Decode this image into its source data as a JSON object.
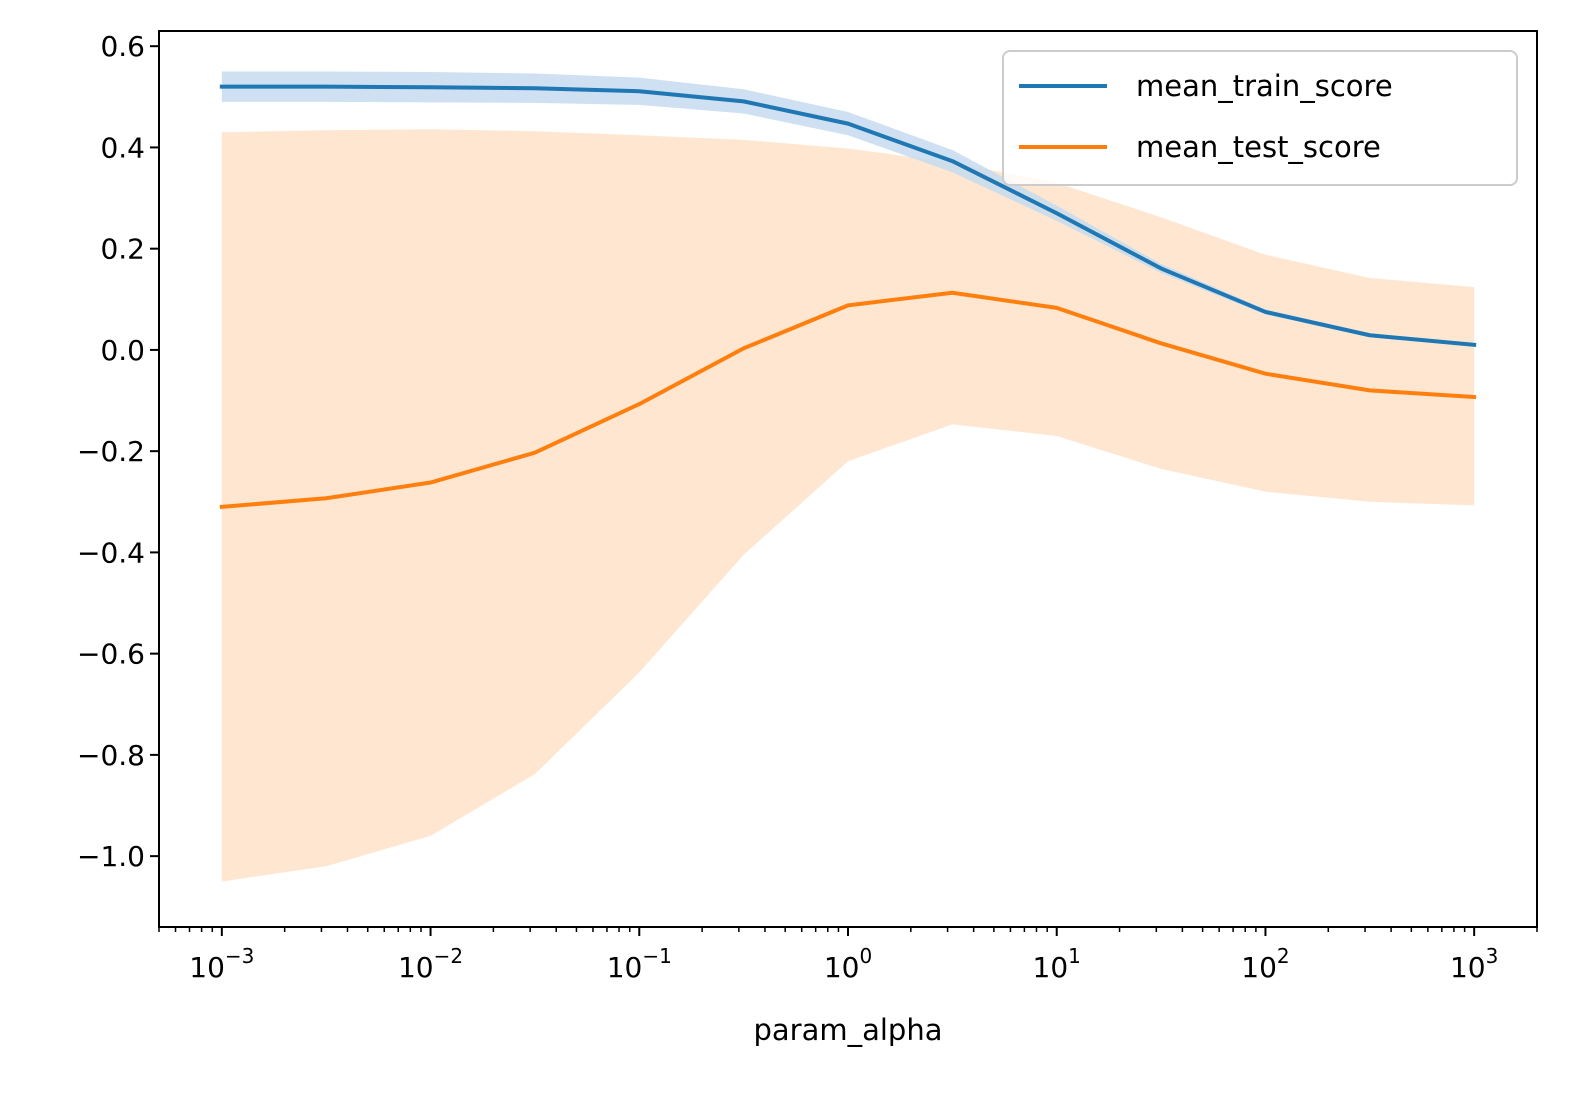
{
  "chart_data": {
    "type": "line",
    "title": "",
    "xlabel": "param_alpha",
    "ylabel": "",
    "xscale": "log",
    "xlim": [
      0.0005,
      2000
    ],
    "ylim": [
      -1.14,
      0.63
    ],
    "x": [
      0.001,
      0.00316,
      0.01,
      0.0316,
      0.1,
      0.316,
      1,
      3.16,
      10,
      31.6,
      100,
      316,
      1000
    ],
    "series": [
      {
        "name": "mean_train_score",
        "color": "#1f77b4",
        "band_color": "#c6dbef",
        "values": [
          0.52,
          0.52,
          0.519,
          0.517,
          0.511,
          0.491,
          0.447,
          0.373,
          0.27,
          0.161,
          0.075,
          0.029,
          0.01
        ],
        "upper": [
          0.55,
          0.55,
          0.549,
          0.546,
          0.538,
          0.515,
          0.47,
          0.395,
          0.285,
          0.17,
          0.08,
          0.033,
          0.013
        ],
        "lower": [
          0.49,
          0.49,
          0.489,
          0.488,
          0.484,
          0.467,
          0.424,
          0.351,
          0.255,
          0.152,
          0.07,
          0.025,
          0.007
        ]
      },
      {
        "name": "mean_test_score",
        "color": "#ff7f0e",
        "band_color": "#ffe2c9",
        "values": [
          -0.31,
          -0.293,
          -0.262,
          -0.203,
          -0.107,
          0.003,
          0.088,
          0.113,
          0.083,
          0.013,
          -0.047,
          -0.08,
          -0.093
        ],
        "upper": [
          0.43,
          0.434,
          0.436,
          0.432,
          0.424,
          0.415,
          0.398,
          0.37,
          0.33,
          0.262,
          0.188,
          0.142,
          0.124
        ],
        "lower": [
          -1.05,
          -1.02,
          -0.96,
          -0.838,
          -0.637,
          -0.405,
          -0.22,
          -0.147,
          -0.17,
          -0.235,
          -0.28,
          -0.3,
          -0.307
        ]
      }
    ],
    "yticks": [
      0.6,
      0.4,
      0.2,
      0.0,
      -0.2,
      -0.4,
      -0.6,
      -0.8,
      -1.0
    ],
    "ytick_labels": [
      "0.6",
      "0.4",
      "0.2",
      "0.0",
      "−0.2",
      "−0.4",
      "−0.6",
      "−0.8",
      "−1.0"
    ],
    "xticks": [
      0.001,
      0.01,
      0.1,
      1,
      10,
      100,
      1000
    ],
    "xtick_labels": [
      {
        "base": "10",
        "exp": "−3"
      },
      {
        "base": "10",
        "exp": "−2"
      },
      {
        "base": "10",
        "exp": "−1"
      },
      {
        "base": "10",
        "exp": "0"
      },
      {
        "base": "10",
        "exp": "1"
      },
      {
        "base": "10",
        "exp": "2"
      },
      {
        "base": "10",
        "exp": "3"
      }
    ],
    "legend_position": "top-right",
    "grid": false
  }
}
